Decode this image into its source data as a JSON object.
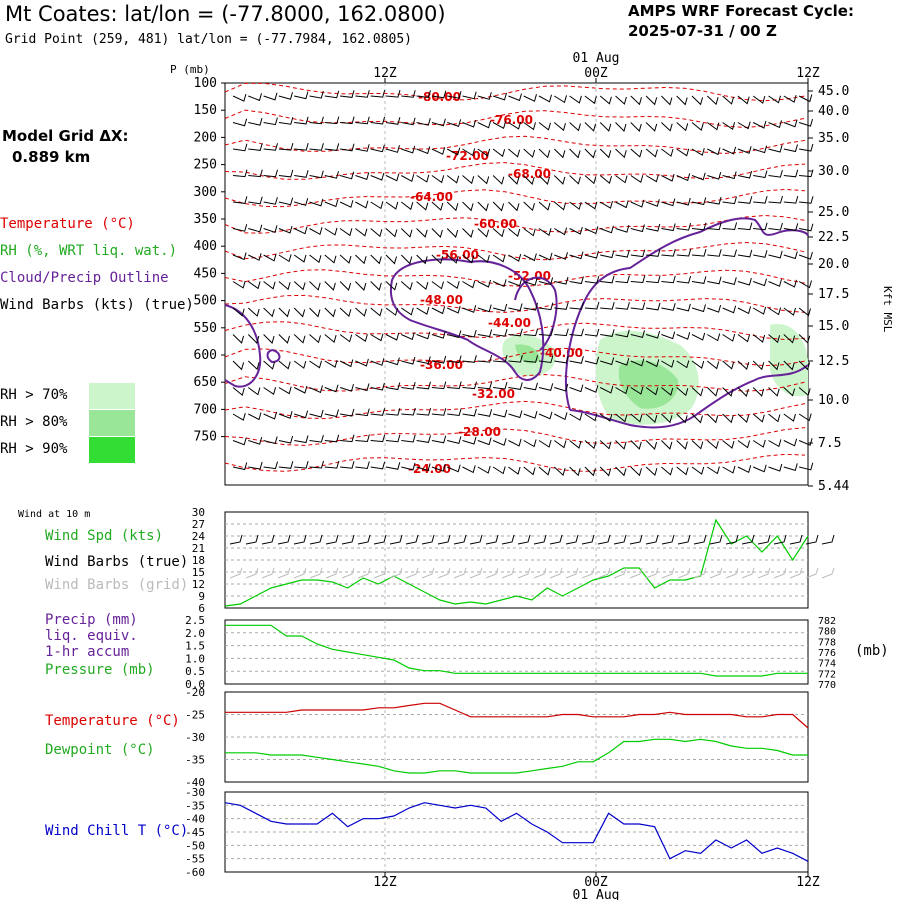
{
  "header": {
    "title": "Mt Coates:  lat/lon = (-77.8000, 162.0800)",
    "grid_point": "Grid Point (259, 481) lat/lon = (-77.7984, 162.0805)",
    "cycle_label": "AMPS WRF Forecast Cycle:",
    "cycle_value": "2025-07-31 / 00  Z",
    "model_grid_label": "Model Grid ΔX:",
    "model_grid_value": "0.889 km"
  },
  "legend": {
    "temperature": "Temperature (°C)",
    "rh": "RH (%, WRT liq. wat.)",
    "cloud": "Cloud/Precip Outline",
    "wind_barbs": "Wind Barbs (kts) (true)",
    "rh_levels": [
      {
        "label": "RH > 70%",
        "color": "#ccf5cc"
      },
      {
        "label": "RH > 80%",
        "color": "#99e699"
      },
      {
        "label": "RH > 90%",
        "color": "#33dd33"
      }
    ]
  },
  "colors": {
    "temperature": "#dd0000",
    "rh_text": "#22aa22",
    "cloud": "#662299",
    "wind_speed": "#00cc00",
    "dewpoint": "#00cc00",
    "temp_line": "#cc0000",
    "wind_chill": "#0000cc",
    "grid_barbs": "#bbbbbb"
  },
  "panels": {
    "wind10m_header": "Wind at 10 m",
    "wind_spd_label": "Wind Spd (kts)",
    "wind_barbs_true_label": "Wind Barbs (true)",
    "wind_barbs_grid_label": "Wind Barbs (grid)",
    "precip_label_1": "Precip (mm)",
    "precip_label_2": "liq. equiv.",
    "precip_label_3": "1-hr accum",
    "pressure_label": "Pressure (mb)",
    "pressure_unit": "(mb)",
    "temp_label": "Temperature (°C)",
    "dewpoint_label": "Dewpoint (°C)",
    "windchill_label": "Wind Chill T (°C)"
  },
  "chart_data": [
    {
      "type": "contour",
      "title": "",
      "ylabel": "P (mb)",
      "ylabel_right": "Kft MSL",
      "y_ticks": [
        "100",
        "150",
        "200",
        "250",
        "300",
        "350",
        "400",
        "450",
        "500",
        "550",
        "600",
        "650",
        "700",
        "750"
      ],
      "right_ticks": [
        "45.0",
        "40.0",
        "35.0",
        "30.0",
        "25.0",
        "22.5",
        "20.0",
        "17.5",
        "15.0",
        "12.5",
        "10.0",
        "7.5",
        "5.44"
      ],
      "x_ticks_top": [
        "12Z",
        "00Z",
        "12Z"
      ],
      "date_top": "01 Aug",
      "temperature_contour_labels": [
        "-80.00",
        "-76.00",
        "-72.00",
        "-68.00",
        "-64.00",
        "-60.00",
        "-56.00",
        "-52.00",
        "-48.00",
        "-44.00",
        "-40.00",
        "-36.00",
        "-32.00",
        "-28.00",
        "-24.00"
      ]
    },
    {
      "type": "line",
      "series": [
        {
          "name": "Wind Spd (kts)",
          "values": [
            6.5,
            7,
            9,
            11,
            12,
            13,
            13,
            12.5,
            11,
            13.5,
            12,
            14,
            12,
            10,
            8,
            7,
            7.5,
            7,
            8,
            9,
            8,
            11,
            9,
            11,
            13,
            14,
            16,
            16,
            11,
            13,
            13,
            14,
            28,
            22,
            24,
            20,
            24,
            18,
            24
          ]
        }
      ],
      "y_ticks": [
        "30",
        "27",
        "24",
        "21",
        "18",
        "15",
        "12",
        "9",
        "6"
      ],
      "ylim": [
        6,
        30
      ]
    },
    {
      "type": "line",
      "series": [
        {
          "name": "Precip (mm)",
          "values": [
            0,
            0,
            0,
            0,
            0,
            0,
            0,
            0,
            0,
            0,
            0,
            0,
            0,
            0,
            0,
            0,
            0,
            0,
            0,
            0,
            0,
            0,
            0,
            0,
            0,
            0,
            0,
            0,
            0,
            0,
            0,
            0,
            0,
            0,
            0,
            0,
            0,
            0,
            0
          ]
        },
        {
          "name": "Pressure (mb)",
          "values": [
            781,
            781,
            781,
            781,
            779,
            779,
            777.5,
            776.5,
            776,
            775.5,
            775,
            774.5,
            773,
            772.5,
            772.5,
            772,
            772,
            772,
            772,
            772,
            772,
            772,
            772,
            772,
            772,
            772,
            772,
            772,
            772,
            772,
            772,
            772,
            771.5,
            771.5,
            771.5,
            771.5,
            772,
            772,
            772
          ]
        }
      ],
      "y_ticks": [
        "2.5",
        "2.0",
        "1.5",
        "1.0",
        "0.5",
        "0.0"
      ],
      "y_ticks_right": [
        "782",
        "780",
        "778",
        "776",
        "774",
        "772",
        "770"
      ],
      "ylim": [
        0,
        2.5
      ]
    },
    {
      "type": "line",
      "series": [
        {
          "name": "Temperature (°C)",
          "values": [
            -24.5,
            -24.5,
            -24.5,
            -24.5,
            -24.5,
            -24,
            -24,
            -24,
            -24,
            -24,
            -23.5,
            -23.5,
            -23,
            -22.5,
            -22.5,
            -24,
            -25.5,
            -25.5,
            -25.5,
            -25.5,
            -25.5,
            -25.5,
            -25,
            -25,
            -25.5,
            -25.5,
            -25.5,
            -25,
            -25,
            -24.5,
            -25,
            -25,
            -25,
            -25,
            -25.5,
            -25.5,
            -25,
            -25,
            -28
          ]
        },
        {
          "name": "Dewpoint (°C)",
          "values": [
            -33.5,
            -33.5,
            -33.5,
            -34,
            -34,
            -34,
            -34.5,
            -35,
            -35.5,
            -36,
            -36.5,
            -37.5,
            -38,
            -38,
            -37.5,
            -37.5,
            -38,
            -38,
            -38,
            -38,
            -37.5,
            -37,
            -36.5,
            -35.5,
            -35.5,
            -33.5,
            -31,
            -31,
            -30.5,
            -30.5,
            -31,
            -30.5,
            -31,
            -32,
            -32.5,
            -32.5,
            -33,
            -34,
            -34
          ]
        }
      ],
      "y_ticks": [
        "-20",
        "-25",
        "-30",
        "-35",
        "-40"
      ],
      "ylim": [
        -40,
        -20
      ]
    },
    {
      "type": "line",
      "series": [
        {
          "name": "Wind Chill T (°C)",
          "values": [
            -34,
            -35,
            -38,
            -41,
            -42,
            -42,
            -42,
            -38,
            -43,
            -40,
            -40,
            -39,
            -36,
            -34,
            -35,
            -36,
            -35,
            -36,
            -41,
            -38,
            -42,
            -45,
            -49,
            -49,
            -49,
            -38,
            -42,
            -42,
            -43,
            -55,
            -52,
            -53,
            -48,
            -51,
            -48,
            -53,
            -51,
            -53,
            -56
          ]
        }
      ],
      "y_ticks": [
        "-30",
        "-35",
        "-40",
        "-45",
        "-50",
        "-55",
        "-60"
      ],
      "ylim": [
        -60,
        -30
      ],
      "x_ticks": [
        "12Z",
        "00Z",
        "12Z"
      ],
      "date_bottom": "01 Aug"
    }
  ]
}
